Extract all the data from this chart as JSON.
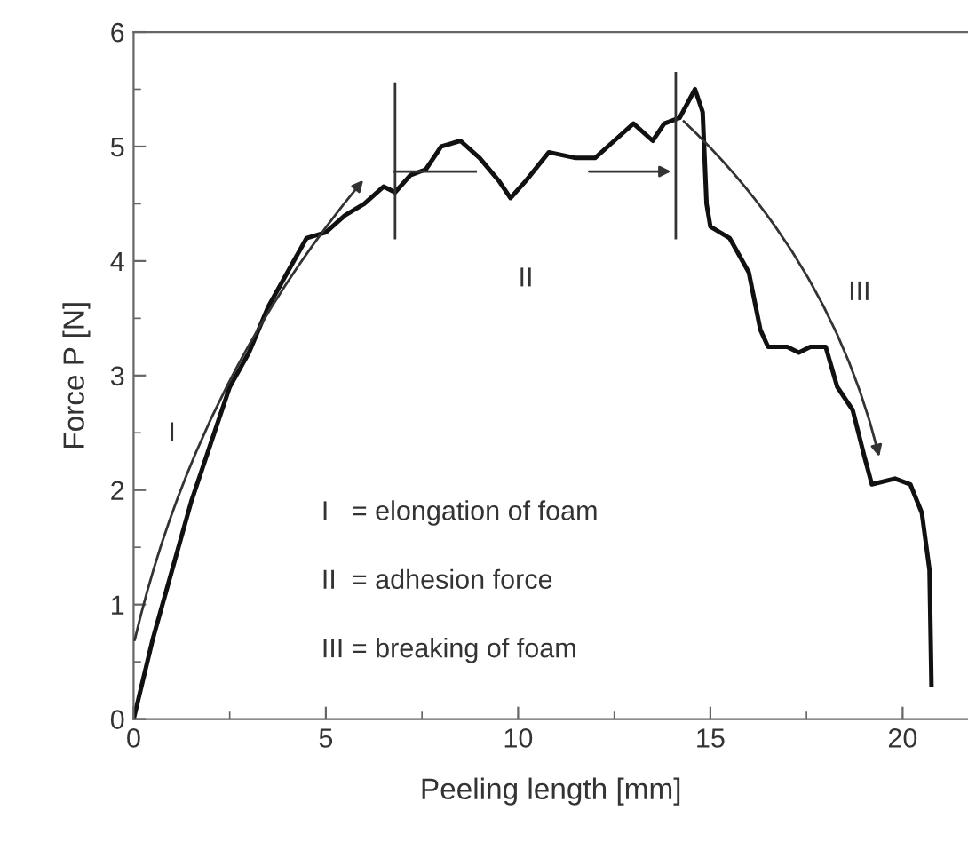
{
  "chart_data": {
    "type": "line",
    "xlabel": "Peeling length [mm]",
    "ylabel": "Force P [N]",
    "xlim": [
      0,
      21.7
    ],
    "ylim": [
      0,
      6
    ],
    "xticks": [
      0,
      5,
      10,
      15,
      20
    ],
    "yticks": [
      0,
      1,
      2,
      3,
      4,
      5,
      6
    ],
    "ref_lines": [
      {
        "axis": "x",
        "value": 6.8,
        "color": "#333333"
      },
      {
        "axis": "x",
        "value": 14.1,
        "color": "#333333"
      }
    ],
    "grid": false,
    "legend": false,
    "marker": "none",
    "line_style": "solid",
    "series": [
      {
        "color": "#111111",
        "x": [
          0,
          0.5,
          1,
          1.5,
          2,
          2.5,
          3,
          3.5,
          4,
          4.5,
          5,
          5.5,
          6,
          6.5,
          6.8,
          7.2,
          7.6,
          8,
          8.5,
          9,
          9.5,
          9.8,
          10.2,
          10.8,
          11.5,
          12,
          12.5,
          13,
          13.5,
          13.8,
          14.2,
          14.6,
          14.8,
          14.9,
          15.0,
          15.5,
          16,
          16.3,
          16.5,
          17,
          17.3,
          17.6,
          18,
          18.3,
          18.7,
          19,
          19.2,
          19.8,
          20.2,
          20.5,
          20.7,
          20.75
        ],
        "values": [
          0,
          0.7,
          1.3,
          1.9,
          2.4,
          2.9,
          3.2,
          3.6,
          3.9,
          4.2,
          4.25,
          4.4,
          4.5,
          4.65,
          4.6,
          4.75,
          4.8,
          5.0,
          5.05,
          4.9,
          4.7,
          4.55,
          4.7,
          4.95,
          4.9,
          4.9,
          5.05,
          5.2,
          5.05,
          5.2,
          5.25,
          5.5,
          5.3,
          4.5,
          4.3,
          4.2,
          3.9,
          3.4,
          3.25,
          3.25,
          3.2,
          3.25,
          3.25,
          2.9,
          2.7,
          2.3,
          2.05,
          2.1,
          2.05,
          1.8,
          1.3,
          0.3
        ]
      }
    ],
    "annotations": [
      "I",
      "II",
      "III",
      "I   = elongation of foam",
      "II  = adhesion force",
      "III = breaking of foam"
    ]
  }
}
